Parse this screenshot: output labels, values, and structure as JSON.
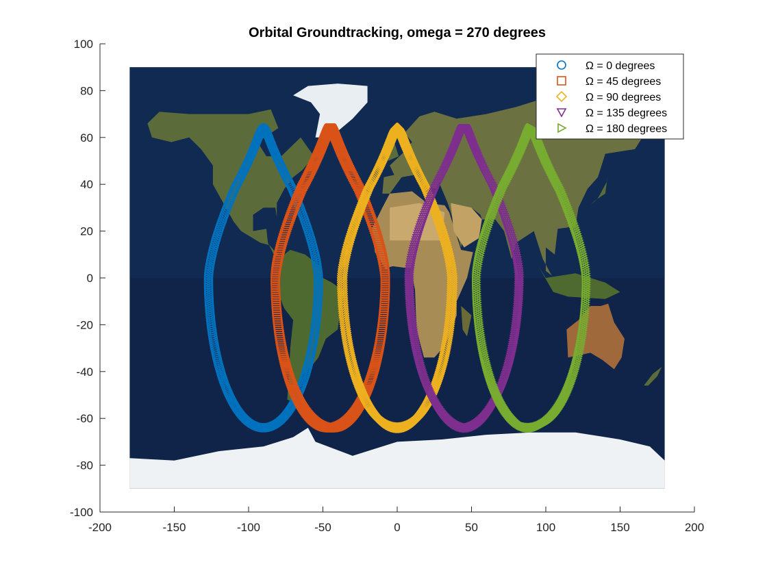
{
  "chart_data": {
    "type": "scatter",
    "title": "Orbital Groundtracking, omega = 270 degrees",
    "xlabel": "",
    "ylabel": "",
    "xlim": [
      -200,
      200
    ],
    "ylim": [
      -100,
      100
    ],
    "xticks": [
      -200,
      -150,
      -100,
      -50,
      0,
      50,
      100,
      150,
      200
    ],
    "yticks": [
      -100,
      -80,
      -60,
      -40,
      -20,
      0,
      20,
      40,
      60,
      80,
      100
    ],
    "xtick_labels": [
      "-200",
      "-150",
      "-100",
      "-50",
      "0",
      "50",
      "100",
      "150",
      "200"
    ],
    "ytick_labels": [
      "-100",
      "-80",
      "-60",
      "-40",
      "-20",
      "0",
      "20",
      "40",
      "60",
      "80",
      "100"
    ],
    "background_image": "earth-satellite-map",
    "background_extent": {
      "lon": [
        -180,
        180
      ],
      "lat": [
        -90,
        90
      ]
    },
    "grid": false,
    "legend_position": "top-right",
    "track_shape": {
      "upper_loop_top_lat": 64,
      "crossing_lat": 42,
      "lower_loop_bottom_lat": -64,
      "lower_loop_half_width_lon": 37,
      "upper_loop_half_width_lon": 8
    },
    "series": [
      {
        "name": "Ω = 0 degrees",
        "center_lon": -90,
        "marker": "circle",
        "color": "#0072BD"
      },
      {
        "name": "Ω = 45 degrees",
        "center_lon": -45,
        "marker": "square",
        "color": "#D95319"
      },
      {
        "name": "Ω = 90 degrees",
        "center_lon": 0,
        "marker": "diamond",
        "color": "#EDB120"
      },
      {
        "name": "Ω = 135 degrees",
        "center_lon": 45,
        "marker": "triangle-down",
        "color": "#7E2F8E"
      },
      {
        "name": "Ω = 180 degrees",
        "center_lon": 90,
        "marker": "triangle-right",
        "color": "#77AC30"
      }
    ]
  }
}
